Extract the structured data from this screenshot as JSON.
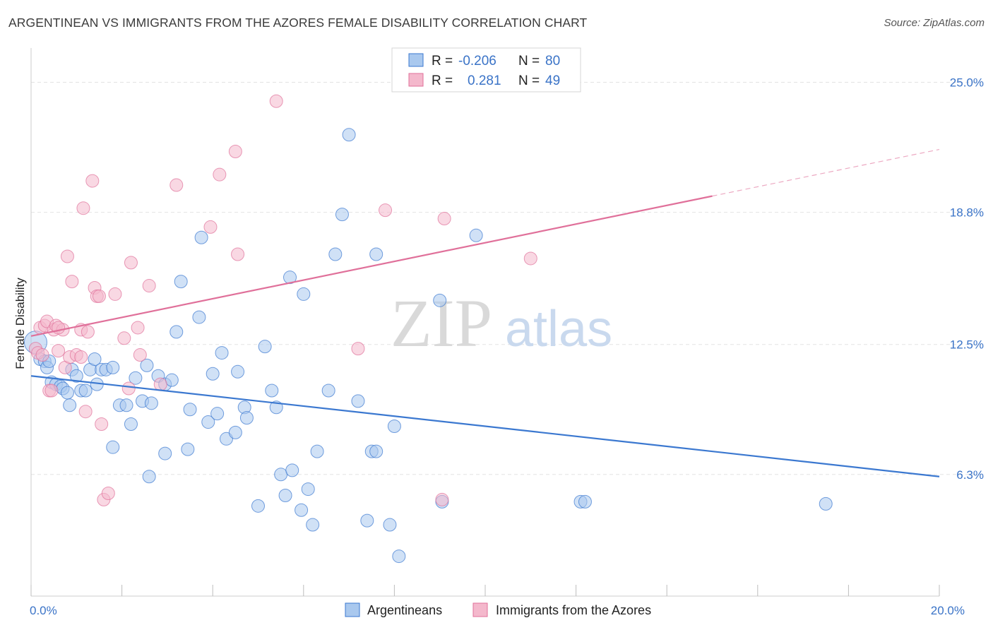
{
  "title": "ARGENTINEAN VS IMMIGRANTS FROM THE AZORES FEMALE DISABILITY CORRELATION CHART",
  "source": "Source: ZipAtlas.com",
  "watermark": {
    "zip": "ZIP",
    "atlas": "atlas"
  },
  "colors": {
    "blue": "#3b78d0",
    "blue_fill": "#a9c8ee",
    "pink": "#e0709a",
    "pink_fill": "#f4b8cc",
    "tick": "#3a73c7",
    "grid": "#e3e3e3"
  },
  "legend_top": {
    "rows": [
      {
        "r_label": "R =",
        "r_value": "-0.206",
        "n_label": "N =",
        "n_value": "80"
      },
      {
        "r_label": "R =",
        "r_value": "0.281",
        "n_label": "N =",
        "n_value": "49"
      }
    ]
  },
  "legend_bottom": [
    "Argentineans",
    "Immigrants from the Azores"
  ],
  "chart_data": {
    "type": "scatter",
    "title": "ARGENTINEAN VS IMMIGRANTS FROM THE AZORES FEMALE DISABILITY CORRELATION CHART",
    "xlabel": "",
    "ylabel": "Female Disability",
    "xlim": [
      0,
      20
    ],
    "ylim": [
      0.5,
      26.5
    ],
    "x_tick_labels": [
      "0.0%",
      "20.0%"
    ],
    "x_tick_values": [
      0,
      20
    ],
    "y_tick_labels": [
      "6.3%",
      "12.5%",
      "18.8%",
      "25.0%"
    ],
    "y_tick_values": [
      6.3,
      12.5,
      18.8,
      25.0
    ],
    "grid": true,
    "legend_position": "top-center",
    "series": [
      {
        "name": "Argentineans",
        "color": "#3b78d0",
        "trend": {
          "x": [
            0,
            20
          ],
          "y": [
            11.0,
            6.2
          ],
          "dashed_from": null
        },
        "points": [
          [
            0.1,
            12.6
          ],
          [
            0.2,
            11.8
          ],
          [
            0.3,
            11.7
          ],
          [
            0.35,
            11.4
          ],
          [
            0.45,
            10.7
          ],
          [
            0.55,
            10.6
          ],
          [
            0.65,
            10.5
          ],
          [
            0.7,
            10.4
          ],
          [
            0.8,
            10.2
          ],
          [
            0.85,
            9.6
          ],
          [
            0.9,
            11.3
          ],
          [
            1.0,
            11.0
          ],
          [
            1.1,
            10.3
          ],
          [
            1.2,
            10.3
          ],
          [
            1.3,
            11.3
          ],
          [
            1.4,
            11.8
          ],
          [
            1.45,
            10.6
          ],
          [
            1.55,
            11.3
          ],
          [
            1.65,
            11.3
          ],
          [
            1.8,
            11.4
          ],
          [
            1.8,
            7.6
          ],
          [
            1.95,
            9.6
          ],
          [
            2.1,
            9.6
          ],
          [
            2.2,
            8.7
          ],
          [
            2.3,
            10.9
          ],
          [
            2.45,
            9.8
          ],
          [
            2.55,
            11.5
          ],
          [
            2.6,
            6.2
          ],
          [
            2.65,
            9.7
          ],
          [
            2.8,
            11.0
          ],
          [
            2.95,
            10.6
          ],
          [
            2.95,
            7.3
          ],
          [
            3.1,
            10.8
          ],
          [
            3.2,
            13.1
          ],
          [
            3.3,
            15.5
          ],
          [
            3.45,
            7.5
          ],
          [
            3.5,
            9.4
          ],
          [
            3.7,
            13.8
          ],
          [
            3.75,
            17.6
          ],
          [
            3.9,
            8.8
          ],
          [
            4.0,
            11.1
          ],
          [
            4.1,
            9.2
          ],
          [
            4.2,
            12.1
          ],
          [
            4.3,
            8.0
          ],
          [
            4.5,
            8.3
          ],
          [
            4.55,
            11.2
          ],
          [
            4.7,
            9.5
          ],
          [
            4.75,
            9.0
          ],
          [
            5.0,
            4.8
          ],
          [
            5.15,
            12.4
          ],
          [
            5.3,
            10.3
          ],
          [
            5.4,
            9.5
          ],
          [
            5.5,
            6.3
          ],
          [
            5.6,
            5.3
          ],
          [
            5.7,
            15.7
          ],
          [
            5.75,
            6.5
          ],
          [
            5.95,
            4.6
          ],
          [
            6.0,
            14.9
          ],
          [
            6.1,
            5.6
          ],
          [
            6.2,
            3.9
          ],
          [
            6.3,
            7.4
          ],
          [
            6.55,
            10.3
          ],
          [
            6.85,
            18.7
          ],
          [
            6.7,
            16.8
          ],
          [
            7.0,
            22.5
          ],
          [
            7.2,
            9.8
          ],
          [
            7.4,
            4.1
          ],
          [
            7.5,
            7.4
          ],
          [
            7.6,
            7.4
          ],
          [
            7.6,
            16.8
          ],
          [
            7.9,
            3.9
          ],
          [
            8.0,
            8.6
          ],
          [
            8.1,
            2.4
          ],
          [
            9.0,
            14.6
          ],
          [
            9.05,
            5.0
          ],
          [
            9.8,
            17.7
          ],
          [
            12.1,
            5.0
          ],
          [
            12.2,
            5.0
          ],
          [
            17.5,
            4.9
          ],
          [
            0.4,
            11.7
          ]
        ]
      },
      {
        "name": "Immigrants from the Azores",
        "color": "#e0709a",
        "trend": {
          "x": [
            0,
            20
          ],
          "y": [
            12.9,
            21.8
          ],
          "dashed_from": 15
        },
        "points": [
          [
            0.1,
            12.3
          ],
          [
            0.15,
            12.1
          ],
          [
            0.2,
            13.3
          ],
          [
            0.3,
            13.4
          ],
          [
            0.35,
            13.6
          ],
          [
            0.4,
            10.3
          ],
          [
            0.45,
            10.3
          ],
          [
            0.5,
            13.2
          ],
          [
            0.55,
            13.4
          ],
          [
            0.6,
            12.2
          ],
          [
            0.7,
            13.2
          ],
          [
            0.75,
            11.4
          ],
          [
            0.8,
            16.7
          ],
          [
            0.85,
            11.9
          ],
          [
            0.9,
            15.5
          ],
          [
            1.0,
            12.0
          ],
          [
            1.1,
            13.2
          ],
          [
            1.15,
            19.0
          ],
          [
            1.2,
            9.3
          ],
          [
            1.25,
            13.1
          ],
          [
            1.35,
            20.3
          ],
          [
            1.4,
            15.2
          ],
          [
            1.45,
            14.8
          ],
          [
            1.5,
            14.8
          ],
          [
            1.55,
            8.7
          ],
          [
            1.6,
            5.1
          ],
          [
            1.7,
            5.4
          ],
          [
            1.85,
            14.9
          ],
          [
            2.05,
            12.8
          ],
          [
            2.15,
            10.4
          ],
          [
            2.2,
            16.4
          ],
          [
            2.35,
            13.3
          ],
          [
            2.4,
            12.0
          ],
          [
            2.6,
            15.3
          ],
          [
            2.85,
            10.6
          ],
          [
            3.2,
            20.1
          ],
          [
            3.95,
            18.1
          ],
          [
            4.15,
            20.6
          ],
          [
            4.5,
            21.7
          ],
          [
            4.55,
            16.8
          ],
          [
            5.4,
            24.1
          ],
          [
            7.2,
            12.3
          ],
          [
            7.8,
            18.9
          ],
          [
            9.05,
            5.1
          ],
          [
            9.1,
            18.5
          ],
          [
            11.0,
            16.6
          ],
          [
            0.25,
            12.0
          ],
          [
            0.6,
            13.3
          ],
          [
            1.1,
            11.9
          ]
        ]
      }
    ]
  }
}
